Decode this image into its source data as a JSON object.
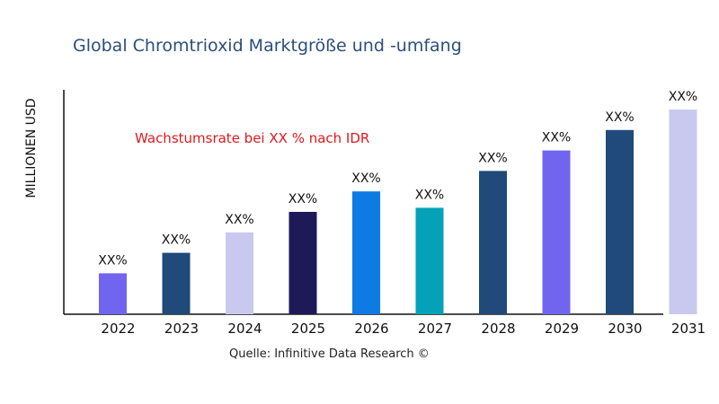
{
  "chart_data": {
    "type": "bar",
    "title": "Global Chromtrioxid Marktgröße und -umfang",
    "ylabel": "MILLIONEN USD",
    "xlabel": "",
    "categories": [
      "2022",
      "2023",
      "2024",
      "2025",
      "2026",
      "2027",
      "2028",
      "2029",
      "2030",
      "2031"
    ],
    "values": [
      20,
      30,
      40,
      50,
      60,
      52,
      70,
      80,
      90,
      100
    ],
    "data_labels": [
      "XX%",
      "XX%",
      "XX%",
      "XX%",
      "XX%",
      "XX%",
      "XX%",
      "XX%",
      "XX%",
      "XX%"
    ],
    "colors": [
      "#7165f0",
      "#1f4a7a",
      "#c9c9ef",
      "#1e1a58",
      "#0e7be5",
      "#03a2b8",
      "#1f4a7a",
      "#7165f0",
      "#1f4a7a",
      "#c9c9ef"
    ],
    "ylim": [
      0,
      110
    ],
    "grid": false,
    "annotation": "Wachstumsrate bei XX % nach IDR",
    "source": "Quelle: Infinitive Data Research ©"
  }
}
